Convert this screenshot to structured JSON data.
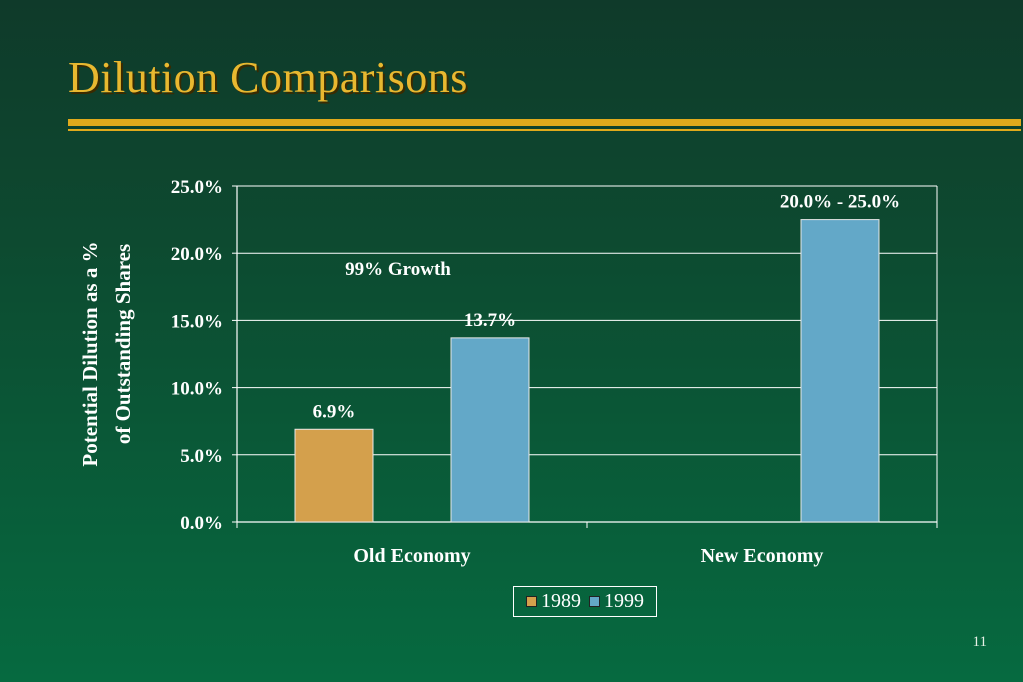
{
  "slide": {
    "title": "Dilution Comparisons",
    "page_number": "11"
  },
  "colors": {
    "title": "#e8b830",
    "rule": "#e0aa1c",
    "series_1989": "#d4a04c",
    "series_1999": "#63a8c8"
  },
  "chart_data": {
    "type": "bar",
    "categories": [
      "Old Economy",
      "New Economy"
    ],
    "series": [
      {
        "name": "1989",
        "values": [
          6.9,
          null
        ],
        "labels": [
          "6.9%",
          ""
        ]
      },
      {
        "name": "1999",
        "values": [
          13.7,
          22.5
        ],
        "labels": [
          "13.7%",
          "20.0% - 25.0%"
        ]
      }
    ],
    "ylabel_line1": "Potential Dilution  as a  %",
    "ylabel_line2": "of Outstanding Shares",
    "ylim": [
      0,
      25
    ],
    "yticks": [
      "0.0%",
      "5.0%",
      "10.0%",
      "15.0%",
      "20.0%",
      "25.0%"
    ],
    "annotation": "99% Growth",
    "grid": true,
    "legend_placement": "bottom-center"
  }
}
